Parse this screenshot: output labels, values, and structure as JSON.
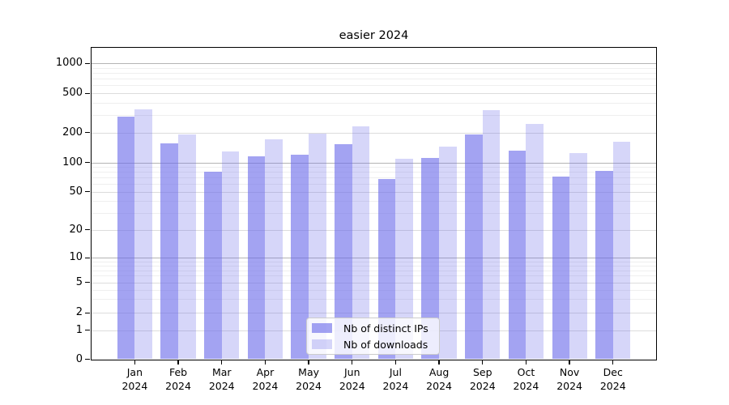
{
  "title": "easier 2024",
  "chart_data": {
    "type": "bar",
    "title": "easier 2024",
    "categories": [
      "Jan",
      "Feb",
      "Mar",
      "Apr",
      "May",
      "Jun",
      "Jul",
      "Aug",
      "Sep",
      "Oct",
      "Nov",
      "Dec"
    ],
    "category_year": "2024",
    "series": [
      {
        "name": "Nb of distinct IPs",
        "color": "#6b6bea",
        "opacity": 0.62,
        "values": [
          290,
          155,
          80,
          115,
          120,
          152,
          67,
          110,
          190,
          130,
          72,
          81
        ]
      },
      {
        "name": "Nb of downloads",
        "color": "#6b6bea",
        "opacity": 0.28,
        "values": [
          345,
          190,
          128,
          170,
          196,
          229,
          108,
          145,
          334,
          246,
          125,
          160
        ]
      }
    ],
    "yscale": "symlog",
    "ytick_labels": [
      "0",
      "1",
      "2",
      "5",
      "10",
      "20",
      "50",
      "100",
      "200",
      "500",
      "1000"
    ],
    "ytick_values": [
      0,
      1,
      2,
      5,
      10,
      20,
      50,
      100,
      200,
      500,
      1000
    ],
    "ylim": [
      0,
      1400
    ],
    "grid": {
      "on": true,
      "major_color": "#b4b4b4",
      "light_color": "#dcdcdc",
      "minor_color": "#efefef"
    },
    "legend": {
      "position": "lower center",
      "entries": [
        "Nb of distinct IPs",
        "Nb of downloads"
      ]
    }
  }
}
